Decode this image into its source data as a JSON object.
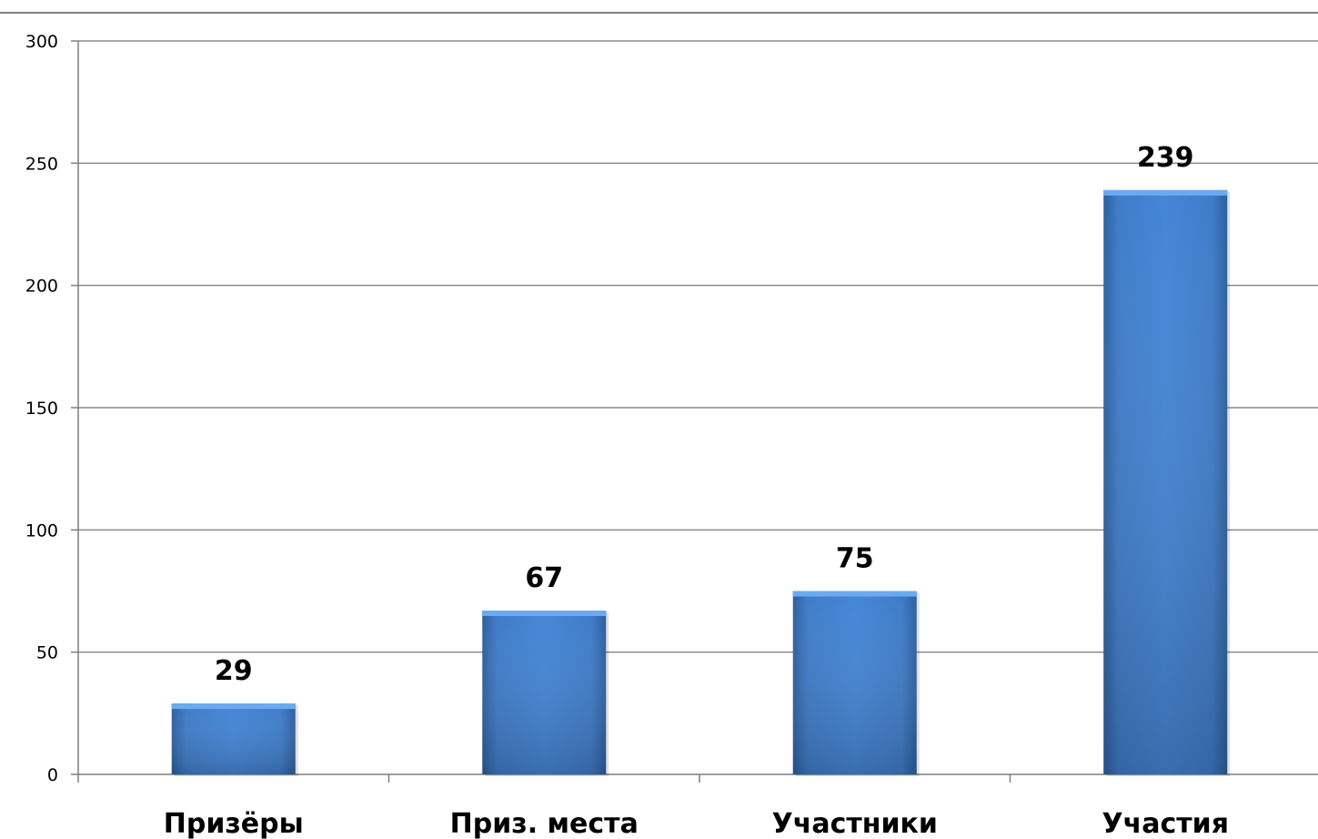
{
  "chart_data": {
    "type": "bar",
    "categories": [
      "Призёры",
      "Приз. места",
      "Участники",
      "Участия"
    ],
    "values": [
      29,
      67,
      75,
      239
    ],
    "data_labels": [
      "29",
      "67",
      "75",
      "239"
    ],
    "y_ticks": [
      "0",
      "50",
      "100",
      "150",
      "200",
      "250",
      "300"
    ],
    "ylim": [
      0,
      300
    ],
    "grid": true,
    "legend": "none",
    "title": "",
    "xlabel": "",
    "ylabel": "",
    "colors": {
      "bar_top": "#6aaaf0",
      "bar_light": "#4a8ad8",
      "bar_dark": "#2c5d9a",
      "grid": "#8a8a8a",
      "axis": "#7f7f7f"
    }
  }
}
